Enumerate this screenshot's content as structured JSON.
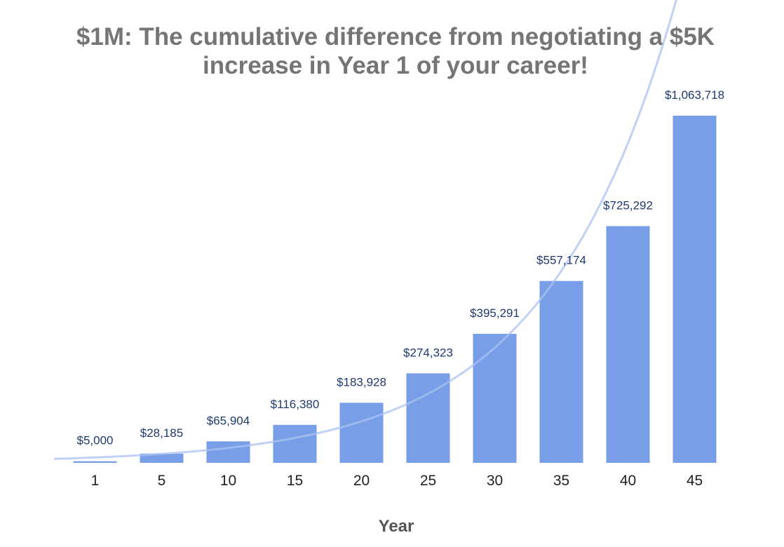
{
  "chart_data": {
    "type": "bar",
    "title": "$1M: The cumulative difference from negotiating a $5K increase in Year 1 of your career!",
    "xlabel": "Year",
    "ylabel": "",
    "categories": [
      "1",
      "5",
      "10",
      "15",
      "20",
      "25",
      "30",
      "35",
      "40",
      "45"
    ],
    "values": [
      5000,
      28185,
      65904,
      116380,
      183928,
      274323,
      395291,
      557174,
      725292,
      1063718
    ],
    "value_labels": [
      "$5,000",
      "$28,185",
      "$65,904",
      "$116,380",
      "$183,928",
      "$274,323",
      "$395,291",
      "$557,174",
      "$725,292",
      "$1,063,718"
    ],
    "ylim": [
      0,
      1085000
    ],
    "grid": false,
    "legend": "none",
    "trendline": "exponential",
    "colors": {
      "bar": "#779ee6",
      "trendline": "#a9c1f2",
      "label": "#1f3a6e",
      "title": "#757575"
    }
  }
}
